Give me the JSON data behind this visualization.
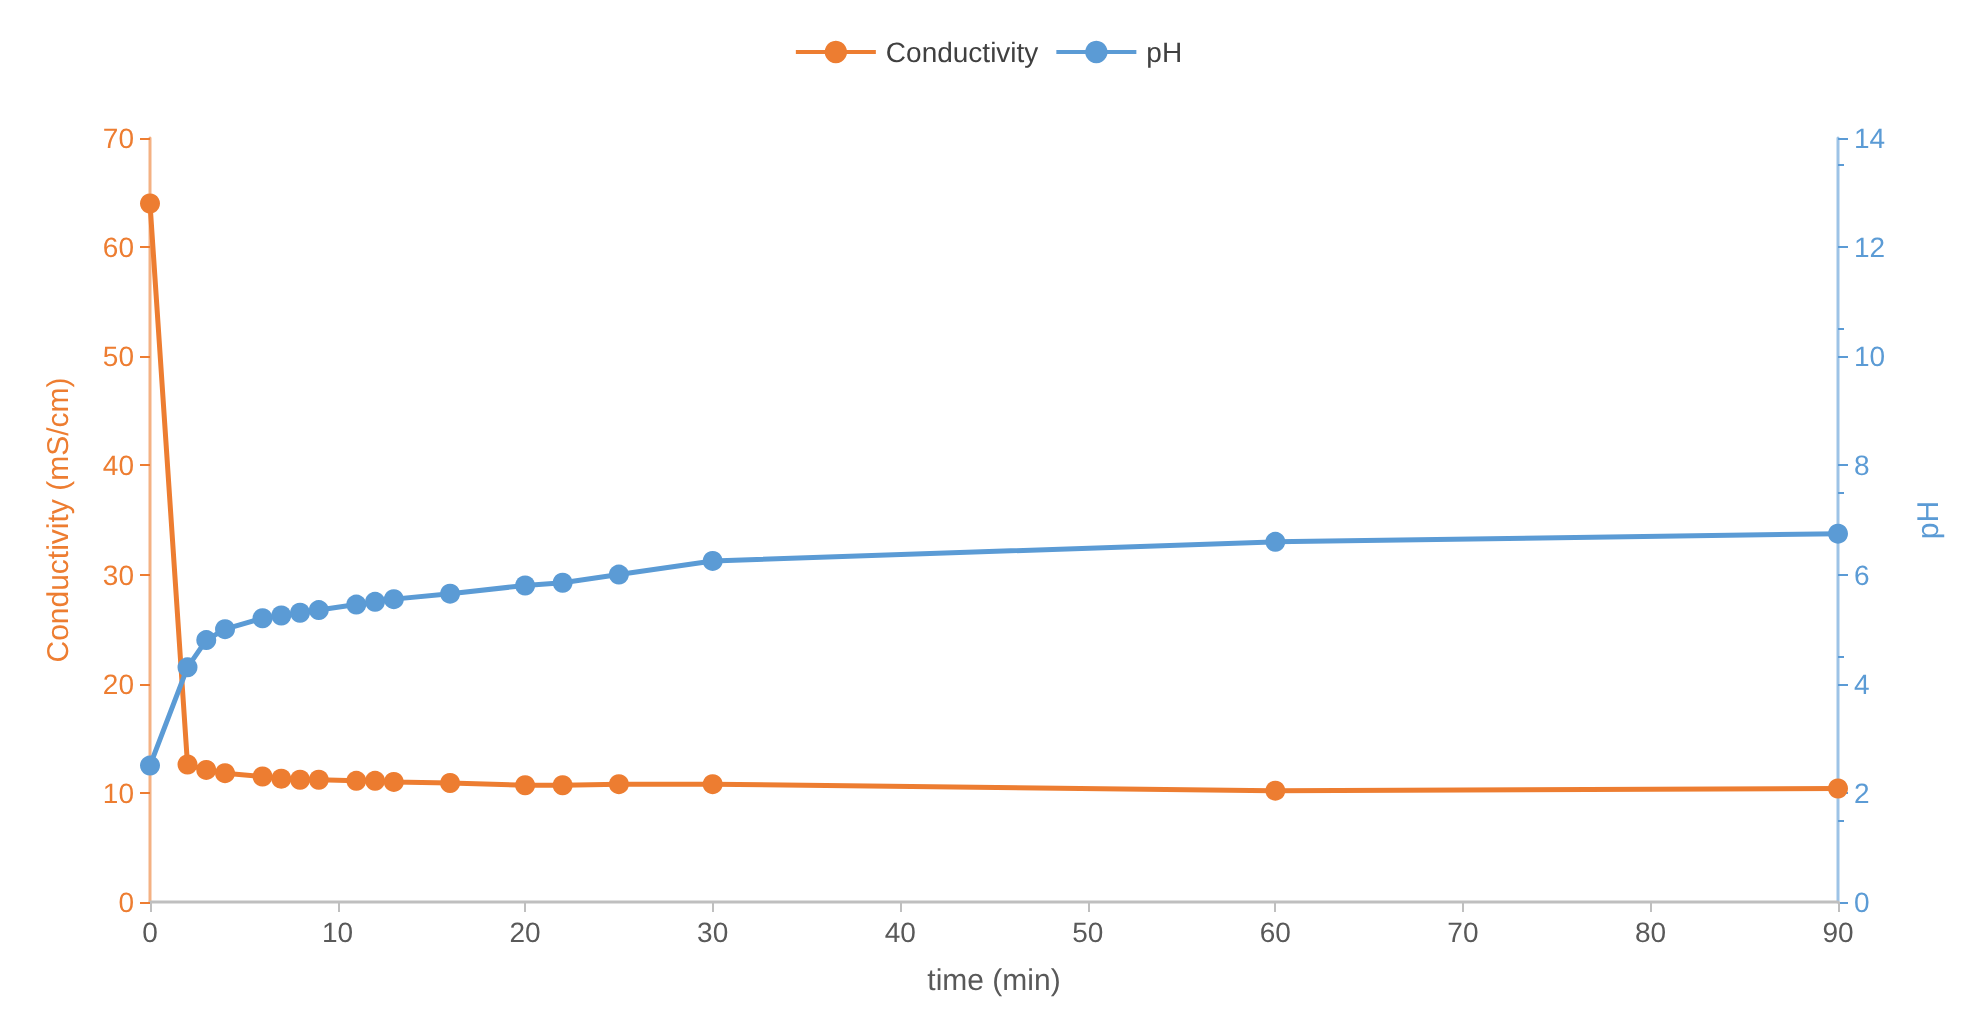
{
  "chart_data": {
    "type": "line",
    "xlabel": "time (min)",
    "ylabel": "Conductivity (mS/cm)",
    "y2label": "pH",
    "x": [
      0,
      2,
      3,
      4,
      6,
      7,
      8,
      9,
      11,
      12,
      13,
      16,
      20,
      22,
      25,
      30,
      60,
      90
    ],
    "series": [
      {
        "name": "Conductivity",
        "color": "#ed7d31",
        "values": [
          64,
          12.6,
          12.1,
          11.8,
          11.5,
          11.3,
          11.2,
          11.2,
          11.1,
          11.1,
          11.0,
          10.9,
          10.7,
          10.7,
          10.8,
          10.8,
          10.2,
          10.4
        ]
      },
      {
        "name": "pH",
        "color": "#5b9bd5",
        "axis": "y2",
        "values": [
          2.5,
          4.3,
          4.8,
          5.0,
          5.2,
          5.25,
          5.3,
          5.35,
          5.45,
          5.5,
          5.55,
          5.65,
          5.8,
          5.85,
          6.0,
          6.25,
          6.6,
          6.75
        ]
      }
    ],
    "xlim": [
      0,
      90
    ],
    "xticks": [
      0,
      10,
      20,
      30,
      40,
      50,
      60,
      70,
      80,
      90
    ],
    "ylim": [
      0,
      70
    ],
    "yticks": [
      0,
      10,
      20,
      30,
      40,
      50,
      60,
      70
    ],
    "y2lim": [
      0,
      14
    ],
    "y2ticks": [
      0,
      2,
      4,
      6,
      8,
      10,
      12,
      14
    ],
    "grid": false,
    "legend": "top",
    "marker": "circle",
    "line_style": "solid"
  }
}
